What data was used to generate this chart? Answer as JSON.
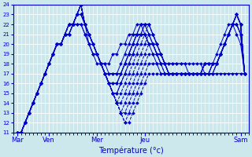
{
  "xlabel": "Température (°c)",
  "ylim": [
    11,
    24
  ],
  "yticks": [
    11,
    12,
    13,
    14,
    15,
    16,
    17,
    18,
    19,
    20,
    21,
    22,
    23,
    24
  ],
  "background_color": "#cce8ec",
  "grid_color": "#ffffff",
  "line_color": "#0000cc",
  "day_labels": [
    "Mar",
    "Ven",
    "Mer",
    "Jeu",
    "Sam"
  ],
  "day_positions": [
    0,
    8,
    20,
    32,
    56
  ],
  "xlim": [
    -1,
    58
  ],
  "series": [
    [
      11,
      11,
      12,
      13,
      14,
      15,
      16,
      17,
      18,
      19,
      20,
      20,
      21,
      21,
      22,
      22,
      22,
      21,
      20,
      19,
      19,
      18,
      18,
      18,
      19,
      19,
      20,
      20,
      21,
      21,
      21,
      21,
      21,
      20,
      20,
      19,
      19,
      18,
      18,
      18,
      18,
      18,
      18,
      18,
      18,
      18,
      18,
      17,
      17,
      17,
      17,
      17,
      17,
      17,
      17,
      17,
      17,
      17
    ],
    [
      11,
      11,
      12,
      13,
      14,
      15,
      16,
      17,
      18,
      19,
      20,
      20,
      21,
      21,
      22,
      22,
      22,
      21,
      20,
      19,
      19,
      18,
      18,
      17,
      17,
      17,
      17,
      18,
      19,
      20,
      21,
      21,
      21,
      20,
      20,
      19,
      18,
      18,
      18,
      18,
      18,
      18,
      18,
      17,
      17,
      17,
      17,
      17,
      17,
      18,
      19,
      20,
      21,
      22,
      22,
      21,
      20,
      17
    ],
    [
      11,
      11,
      12,
      13,
      14,
      15,
      16,
      17,
      18,
      19,
      20,
      20,
      21,
      21,
      22,
      23,
      23,
      22,
      20,
      19,
      18,
      18,
      17,
      17,
      17,
      17,
      18,
      19,
      20,
      21,
      22,
      22,
      21,
      20,
      19,
      18,
      17,
      17,
      17,
      17,
      17,
      17,
      17,
      17,
      17,
      17,
      17,
      17,
      17,
      17,
      18,
      19,
      20,
      21,
      22,
      22,
      21,
      17
    ],
    [
      11,
      11,
      12,
      13,
      14,
      15,
      16,
      17,
      18,
      19,
      20,
      20,
      21,
      21,
      22,
      23,
      23,
      22,
      21,
      20,
      19,
      18,
      17,
      16,
      16,
      16,
      17,
      18,
      19,
      20,
      21,
      22,
      22,
      21,
      20,
      19,
      18,
      17,
      17,
      17,
      17,
      17,
      17,
      17,
      17,
      17,
      17,
      17,
      17,
      17,
      18,
      19,
      20,
      21,
      22,
      23,
      22,
      17
    ],
    [
      11,
      11,
      12,
      13,
      14,
      15,
      16,
      17,
      18,
      19,
      20,
      20,
      21,
      22,
      22,
      23,
      23,
      22,
      21,
      20,
      19,
      18,
      17,
      16,
      16,
      16,
      17,
      18,
      19,
      20,
      21,
      22,
      22,
      21,
      20,
      19,
      18,
      18,
      17,
      17,
      17,
      17,
      17,
      17,
      17,
      17,
      17,
      17,
      17,
      18,
      18,
      19,
      20,
      21,
      22,
      23,
      22,
      17
    ],
    [
      11,
      11,
      12,
      13,
      14,
      15,
      16,
      17,
      18,
      19,
      20,
      20,
      21,
      22,
      22,
      23,
      24,
      22,
      21,
      20,
      19,
      18,
      17,
      16,
      15,
      15,
      16,
      17,
      18,
      19,
      20,
      21,
      22,
      22,
      21,
      20,
      19,
      18,
      17,
      17,
      17,
      17,
      17,
      17,
      17,
      17,
      17,
      17,
      17,
      18,
      18,
      19,
      20,
      21,
      22,
      23,
      22,
      17
    ],
    [
      11,
      11,
      12,
      13,
      14,
      15,
      16,
      17,
      18,
      19,
      20,
      20,
      21,
      22,
      22,
      23,
      24,
      22,
      21,
      20,
      19,
      18,
      17,
      16,
      15,
      15,
      16,
      17,
      18,
      19,
      20,
      21,
      22,
      22,
      21,
      20,
      19,
      18,
      17,
      17,
      17,
      17,
      17,
      17,
      17,
      17,
      17,
      18,
      18,
      18,
      18,
      19,
      20,
      21,
      22,
      23,
      22,
      17
    ],
    [
      11,
      11,
      12,
      13,
      14,
      15,
      16,
      17,
      18,
      19,
      20,
      20,
      21,
      22,
      22,
      23,
      24,
      22,
      21,
      20,
      19,
      18,
      17,
      16,
      15,
      14,
      15,
      16,
      17,
      18,
      19,
      20,
      21,
      22,
      21,
      20,
      19,
      18,
      17,
      17,
      17,
      17,
      17,
      17,
      17,
      17,
      17,
      18,
      18,
      18,
      18,
      19,
      20,
      21,
      22,
      23,
      22,
      17
    ],
    [
      11,
      11,
      12,
      13,
      14,
      15,
      16,
      17,
      18,
      19,
      20,
      20,
      21,
      22,
      22,
      23,
      24,
      22,
      21,
      20,
      19,
      18,
      17,
      16,
      15,
      14,
      14,
      15,
      16,
      17,
      18,
      19,
      20,
      21,
      21,
      20,
      19,
      18,
      17,
      17,
      17,
      17,
      17,
      17,
      17,
      17,
      17,
      18,
      18,
      18,
      18,
      19,
      20,
      21,
      22,
      23,
      22,
      17
    ],
    [
      11,
      11,
      12,
      13,
      14,
      15,
      16,
      17,
      18,
      19,
      20,
      20,
      21,
      22,
      22,
      23,
      24,
      22,
      21,
      20,
      19,
      18,
      17,
      16,
      15,
      14,
      13,
      14,
      15,
      16,
      17,
      18,
      19,
      20,
      20,
      20,
      19,
      18,
      17,
      17,
      17,
      17,
      17,
      17,
      17,
      17,
      17,
      18,
      18,
      18,
      18,
      19,
      20,
      21,
      22,
      23,
      22,
      17
    ],
    [
      11,
      11,
      12,
      13,
      14,
      15,
      16,
      17,
      18,
      19,
      20,
      20,
      21,
      22,
      22,
      23,
      24,
      22,
      21,
      20,
      19,
      18,
      17,
      16,
      15,
      14,
      13,
      13,
      14,
      15,
      16,
      17,
      18,
      19,
      19,
      19,
      19,
      18,
      17,
      17,
      17,
      17,
      17,
      17,
      17,
      17,
      17,
      18,
      18,
      18,
      18,
      19,
      20,
      21,
      22,
      22,
      21,
      17
    ],
    [
      11,
      11,
      12,
      13,
      14,
      15,
      16,
      17,
      18,
      19,
      20,
      20,
      21,
      22,
      22,
      23,
      24,
      22,
      21,
      20,
      19,
      18,
      17,
      16,
      15,
      14,
      13,
      12,
      13,
      14,
      15,
      16,
      17,
      18,
      18,
      18,
      18,
      17,
      17,
      17,
      17,
      17,
      17,
      17,
      17,
      17,
      17,
      18,
      18,
      18,
      18,
      19,
      20,
      21,
      22,
      22,
      21,
      17
    ],
    [
      11,
      11,
      12,
      13,
      14,
      15,
      16,
      17,
      18,
      19,
      20,
      20,
      21,
      22,
      22,
      23,
      24,
      22,
      21,
      20,
      19,
      18,
      17,
      16,
      15,
      14,
      13,
      12,
      12,
      13,
      14,
      15,
      16,
      17,
      17,
      17,
      17,
      17,
      17,
      17,
      17,
      17,
      17,
      17,
      17,
      17,
      17,
      18,
      18,
      18,
      18,
      19,
      20,
      21,
      22,
      22,
      21,
      17
    ]
  ]
}
